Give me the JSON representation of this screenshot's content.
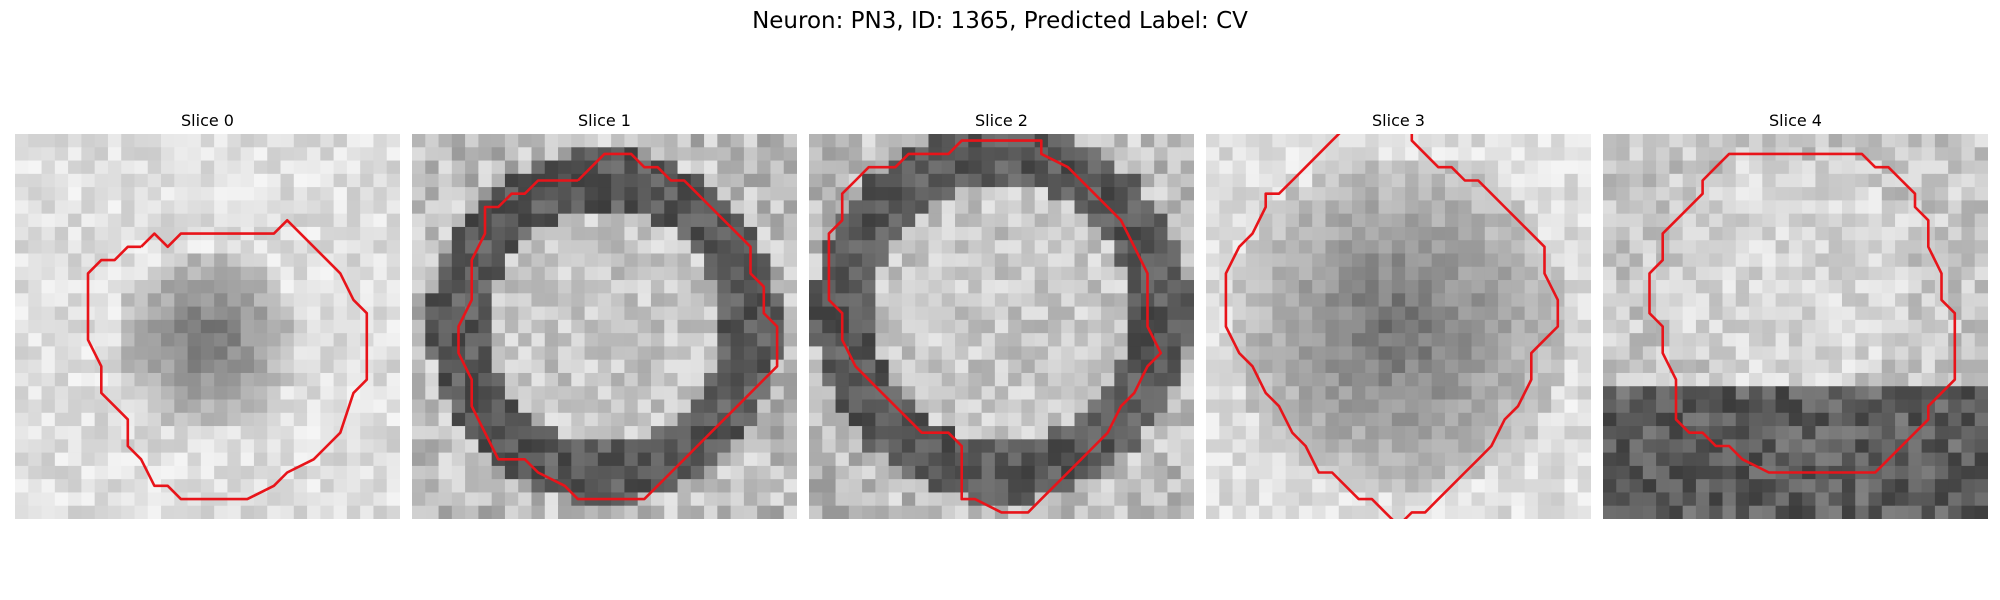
{
  "figure": {
    "title": "Neuron: PN3, ID: 1365, Predicted Label: CV"
  },
  "slices": [
    {
      "title": "Slice 0",
      "contour": [
        [
          9,
          8
        ],
        [
          10,
          7
        ],
        [
          11,
          8
        ],
        [
          12,
          7
        ],
        [
          19,
          7
        ],
        [
          20,
          6
        ],
        [
          23,
          9
        ],
        [
          24,
          10
        ],
        [
          25,
          12
        ],
        [
          26,
          13
        ],
        [
          26,
          18
        ],
        [
          25,
          19
        ],
        [
          24,
          22
        ],
        [
          23,
          23
        ],
        [
          22,
          24
        ],
        [
          20,
          25
        ],
        [
          19,
          26
        ],
        [
          17,
          27
        ],
        [
          12,
          27
        ],
        [
          11,
          26
        ],
        [
          10,
          26
        ],
        [
          9,
          24
        ],
        [
          8,
          23
        ],
        [
          8,
          21
        ],
        [
          7,
          20
        ],
        [
          6,
          19
        ],
        [
          6,
          17
        ],
        [
          5,
          15
        ],
        [
          5,
          10
        ],
        [
          6,
          9
        ],
        [
          7,
          9
        ],
        [
          8,
          8
        ],
        [
          9,
          8
        ]
      ],
      "intensity": {
        "center": [
          14,
          15
        ],
        "dark_radius": 7,
        "base": "light"
      }
    },
    {
      "title": "Slice 1",
      "contour": [
        [
          12,
          3
        ],
        [
          13,
          2
        ],
        [
          14,
          1
        ],
        [
          16,
          1
        ],
        [
          17,
          2
        ],
        [
          18,
          2
        ],
        [
          19,
          3
        ],
        [
          20,
          3
        ],
        [
          21,
          4
        ],
        [
          22,
          5
        ],
        [
          23,
          6
        ],
        [
          24,
          7
        ],
        [
          25,
          8
        ],
        [
          25,
          10
        ],
        [
          26,
          11
        ],
        [
          26,
          13
        ],
        [
          27,
          14
        ],
        [
          27,
          17
        ],
        [
          26,
          18
        ],
        [
          25,
          19
        ],
        [
          24,
          20
        ],
        [
          23,
          21
        ],
        [
          22,
          22
        ],
        [
          21,
          23
        ],
        [
          20,
          24
        ],
        [
          19,
          25
        ],
        [
          18,
          26
        ],
        [
          17,
          27
        ],
        [
          12,
          27
        ],
        [
          11,
          26
        ],
        [
          9,
          25
        ],
        [
          8,
          24
        ],
        [
          6,
          24
        ],
        [
          5,
          22
        ],
        [
          4,
          20
        ],
        [
          4,
          18
        ],
        [
          3,
          16
        ],
        [
          3,
          14
        ],
        [
          4,
          12
        ],
        [
          4,
          9
        ],
        [
          5,
          7
        ],
        [
          5,
          5
        ],
        [
          6,
          5
        ],
        [
          7,
          4
        ],
        [
          8,
          4
        ],
        [
          9,
          3
        ],
        [
          10,
          3
        ],
        [
          11,
          3
        ],
        [
          12,
          3
        ]
      ],
      "intensity": {
        "center": [
          14,
          14
        ],
        "dark_radius": 11,
        "base": "mid"
      }
    },
    {
      "title": "Slice 2",
      "contour": [
        [
          9,
          1
        ],
        [
          10,
          1
        ],
        [
          11,
          0
        ],
        [
          17,
          0
        ],
        [
          17,
          1
        ],
        [
          19,
          2
        ],
        [
          20,
          3
        ],
        [
          21,
          4
        ],
        [
          22,
          5
        ],
        [
          23,
          6
        ],
        [
          24,
          8
        ],
        [
          25,
          10
        ],
        [
          25,
          14
        ],
        [
          26,
          16
        ],
        [
          25,
          17
        ],
        [
          24,
          19
        ],
        [
          23,
          20
        ],
        [
          22,
          22
        ],
        [
          21,
          23
        ],
        [
          20,
          24
        ],
        [
          19,
          25
        ],
        [
          18,
          26
        ],
        [
          17,
          27
        ],
        [
          16,
          28
        ],
        [
          14,
          28
        ],
        [
          12,
          27
        ],
        [
          11,
          27
        ],
        [
          11,
          23
        ],
        [
          10,
          22
        ],
        [
          8,
          22
        ],
        [
          7,
          21
        ],
        [
          6,
          20
        ],
        [
          5,
          19
        ],
        [
          4,
          18
        ],
        [
          3,
          17
        ],
        [
          2,
          15
        ],
        [
          2,
          13
        ],
        [
          1,
          12
        ],
        [
          1,
          7
        ],
        [
          2,
          6
        ],
        [
          2,
          4
        ],
        [
          3,
          3
        ],
        [
          4,
          2
        ],
        [
          6,
          2
        ],
        [
          7,
          1
        ],
        [
          9,
          1
        ]
      ],
      "intensity": {
        "center": [
          14,
          13
        ],
        "dark_radius": 12,
        "base": "mid"
      }
    },
    {
      "title": "Slice 3",
      "contour": [
        [
          10,
          -1
        ],
        [
          9,
          0
        ],
        [
          8,
          1
        ],
        [
          7,
          2
        ],
        [
          6,
          3
        ],
        [
          5,
          4
        ],
        [
          4,
          4
        ],
        [
          4,
          5
        ],
        [
          3,
          7
        ],
        [
          2,
          8
        ],
        [
          1,
          10
        ],
        [
          1,
          14
        ],
        [
          2,
          16
        ],
        [
          3,
          17
        ],
        [
          4,
          19
        ],
        [
          5,
          20
        ],
        [
          6,
          22
        ],
        [
          7,
          23
        ],
        [
          8,
          25
        ],
        [
          9,
          25
        ],
        [
          11,
          27
        ],
        [
          12,
          27
        ],
        [
          13,
          28
        ],
        [
          14,
          29
        ],
        [
          15,
          28
        ],
        [
          16,
          28
        ],
        [
          17,
          27
        ],
        [
          18,
          26
        ],
        [
          19,
          25
        ],
        [
          20,
          24
        ],
        [
          21,
          23
        ],
        [
          22,
          21
        ],
        [
          23,
          20
        ],
        [
          24,
          18
        ],
        [
          24,
          16
        ],
        [
          25,
          15
        ],
        [
          26,
          14
        ],
        [
          26,
          12
        ],
        [
          25,
          10
        ],
        [
          25,
          8
        ],
        [
          24,
          7
        ],
        [
          23,
          6
        ],
        [
          22,
          5
        ],
        [
          21,
          4
        ],
        [
          20,
          3
        ],
        [
          19,
          3
        ],
        [
          18,
          2
        ],
        [
          17,
          2
        ],
        [
          16,
          1
        ],
        [
          15,
          0
        ],
        [
          15,
          -1
        ],
        [
          14,
          -1
        ]
      ],
      "intensity": {
        "center": [
          14,
          14
        ],
        "dark_radius": 13,
        "base": "light"
      }
    },
    {
      "title": "Slice 4",
      "contour": [
        [
          8,
          2
        ],
        [
          9,
          1
        ],
        [
          10,
          1
        ],
        [
          19,
          1
        ],
        [
          20,
          2
        ],
        [
          21,
          2
        ],
        [
          22,
          3
        ],
        [
          23,
          4
        ],
        [
          23,
          5
        ],
        [
          24,
          6
        ],
        [
          24,
          8
        ],
        [
          25,
          10
        ],
        [
          25,
          12
        ],
        [
          26,
          13
        ],
        [
          26,
          18
        ],
        [
          25,
          19
        ],
        [
          24,
          20
        ],
        [
          24,
          21
        ],
        [
          23,
          22
        ],
        [
          22,
          23
        ],
        [
          21,
          24
        ],
        [
          20,
          25
        ],
        [
          16,
          25
        ],
        [
          15,
          25
        ],
        [
          13,
          25
        ],
        [
          12,
          25
        ],
        [
          10,
          24
        ],
        [
          9,
          23
        ],
        [
          8,
          23
        ],
        [
          7,
          22
        ],
        [
          6,
          22
        ],
        [
          5,
          21
        ],
        [
          5,
          20
        ],
        [
          5,
          18
        ],
        [
          4,
          16
        ],
        [
          4,
          15
        ],
        [
          4,
          14
        ],
        [
          3,
          13
        ],
        [
          3,
          10
        ],
        [
          4,
          9
        ],
        [
          4,
          7
        ],
        [
          5,
          6
        ],
        [
          6,
          5
        ],
        [
          7,
          4
        ],
        [
          7,
          3
        ],
        [
          8,
          2
        ]
      ],
      "intensity": {
        "center": [
          14,
          10
        ],
        "dark_radius": 9,
        "base": "bottom-dark"
      }
    }
  ]
}
